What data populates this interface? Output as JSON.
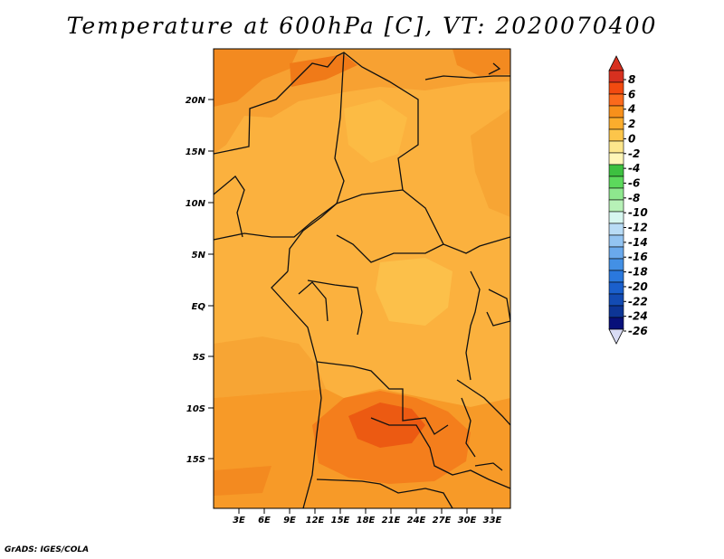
{
  "title": "Temperature at 600hPa [C], VT: 2020070400",
  "footer": "GrADS: IGES/COLA",
  "map": {
    "lat_ticks": [
      "20N",
      "15N",
      "10N",
      "5N",
      "EQ",
      "5S",
      "10S",
      "15S"
    ],
    "lon_ticks": [
      "3E",
      "6E",
      "9E",
      "12E",
      "15E",
      "18E",
      "21E",
      "24E",
      "27E",
      "30E",
      "33E"
    ],
    "lat_range": [
      -20,
      24.5
    ],
    "lon_range": [
      0,
      35
    ]
  },
  "colorbar": {
    "labels": [
      "8",
      "6",
      "4",
      "2",
      "0",
      "-2",
      "-4",
      "-6",
      "-8",
      "-10",
      "-12",
      "-14",
      "-16",
      "-18",
      "-20",
      "-22",
      "-24",
      "-26"
    ],
    "colors": [
      "#d7301f",
      "#f24a10",
      "#fb6a1c",
      "#f7901b",
      "#fbad2d",
      "#fcc54a",
      "#fde68c",
      "#fff6b8",
      "#3dc040",
      "#5cd95c",
      "#8ee88e",
      "#b7f1b7",
      "#d7f7f0",
      "#b9dcf6",
      "#93c4f2",
      "#6aa9ec",
      "#4390e5",
      "#2a78dd",
      "#1a5fcc",
      "#134bb3",
      "#0d3596",
      "#08107a"
    ],
    "over_color": "#d7301f",
    "under_color": "#d9dcf5"
  },
  "colors": {
    "dominant": "#fbb13e",
    "warm": "#f79a28",
    "hot": "#f26a10",
    "hottest": "#e84a0c"
  }
}
